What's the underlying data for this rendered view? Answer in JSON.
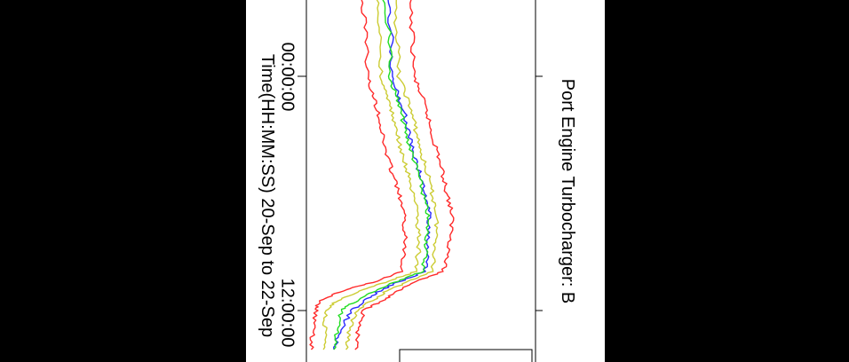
{
  "colors": {
    "background": "#000000",
    "panel": "#ffffff",
    "envelope_outer": "#ff2a2a",
    "envelope_inner": "#cccc33",
    "series_green": "#22dd22",
    "series_blue": "#2a2aff"
  },
  "chart_data": {
    "type": "line",
    "orientation": "rotated-90-clockwise",
    "title": "Port Engine Turbocharger: B",
    "xlabel": "Time(HH:MM:SS) 20-Sep to 22-Sep",
    "ylabel": "",
    "x_ticks": [
      "00:00:00",
      "12:00:00"
    ],
    "x": [
      -4,
      -2,
      0,
      1,
      2,
      3,
      4,
      5,
      6,
      7,
      8,
      9,
      10,
      10.5,
      11,
      11.5,
      12,
      13,
      14
    ],
    "series": [
      {
        "name": "",
        "color": "#2a2aff",
        "values": [
          0.25,
          0.22,
          0.22,
          0.17,
          0.13,
          0.1,
          0.07,
          0.03,
          0.0,
          -0.03,
          -0.03,
          -0.02,
          0.0,
          0.16,
          0.3,
          0.4,
          0.48,
          0.56,
          0.6
        ]
      },
      {
        "name": "",
        "color": "#22dd22",
        "values": [
          0.27,
          0.23,
          0.23,
          0.19,
          0.15,
          0.12,
          0.08,
          0.04,
          0.01,
          -0.02,
          -0.02,
          -0.01,
          0.01,
          0.18,
          0.33,
          0.45,
          0.55,
          0.58,
          0.6
        ]
      }
    ],
    "envelopes": [
      {
        "name": "",
        "color": "#cccc33",
        "lower": [
          0.2,
          0.18,
          0.17,
          0.12,
          0.08,
          0.05,
          0.02,
          -0.02,
          -0.05,
          -0.08,
          -0.08,
          -0.07,
          -0.05,
          0.1,
          0.25,
          0.35,
          0.45,
          0.5,
          0.52
        ],
        "upper": [
          0.32,
          0.29,
          0.29,
          0.25,
          0.21,
          0.18,
          0.15,
          0.11,
          0.08,
          0.05,
          0.04,
          0.04,
          0.06,
          0.24,
          0.42,
          0.58,
          0.66,
          0.66,
          0.67
        ]
      },
      {
        "name": "",
        "color": "#ff2a2a",
        "lower": [
          0.1,
          0.08,
          0.07,
          0.02,
          -0.02,
          -0.05,
          -0.09,
          -0.12,
          -0.15,
          -0.18,
          -0.18,
          -0.16,
          -0.12,
          0.05,
          0.18,
          0.28,
          0.4,
          0.44,
          0.46
        ],
        "upper": [
          0.42,
          0.38,
          0.38,
          0.34,
          0.3,
          0.28,
          0.25,
          0.21,
          0.17,
          0.14,
          0.13,
          0.13,
          0.15,
          0.32,
          0.55,
          0.7,
          0.72,
          0.74,
          0.75
        ]
      }
    ],
    "grid": false
  }
}
